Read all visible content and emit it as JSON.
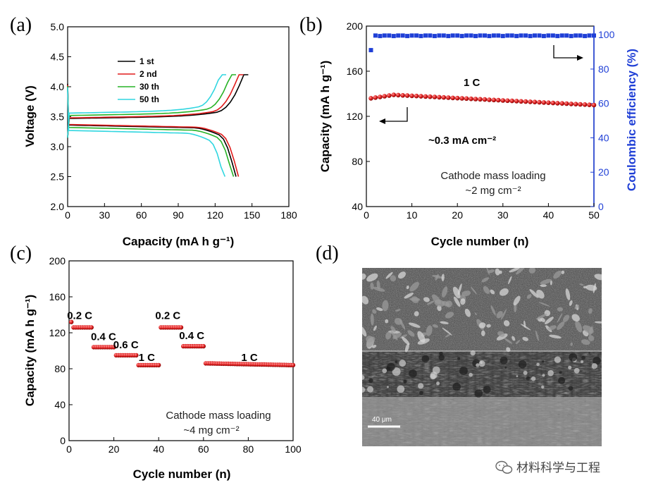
{
  "panels": {
    "a": {
      "letter": "(a)"
    },
    "b": {
      "letter": "(b)"
    },
    "c": {
      "letter": "(c)"
    },
    "d": {
      "letter": "(d)"
    }
  },
  "chart_data": [
    {
      "id": "a",
      "type": "line",
      "xlabel": "Capacity (mA h g⁻¹)",
      "ylabel": "Voltage (V)",
      "xlim": [
        0,
        180
      ],
      "ylim": [
        2.0,
        5.0
      ],
      "xticks": [
        "0",
        "30",
        "60",
        "90",
        "120",
        "150",
        "180"
      ],
      "yticks": [
        "2.0",
        "2.5",
        "3.0",
        "3.5",
        "4.0",
        "4.5",
        "5.0"
      ],
      "legend_position": "top-left",
      "series": [
        {
          "name": "1 st",
          "color": "#000000",
          "charge_end": [
            147,
            4.2
          ],
          "discharge_end": [
            137,
            2.5
          ],
          "charge_plateau": 3.47,
          "discharge_plateau": 3.36
        },
        {
          "name": "2 nd",
          "color": "#e01b1b",
          "charge_end": [
            143,
            4.2
          ],
          "discharge_end": [
            139,
            2.5
          ],
          "charge_plateau": 3.48,
          "discharge_plateau": 3.37
        },
        {
          "name": "30 th",
          "color": "#27b327",
          "charge_end": [
            137,
            4.2
          ],
          "discharge_end": [
            135,
            2.5
          ],
          "charge_plateau": 3.52,
          "discharge_plateau": 3.32
        },
        {
          "name": "50 th",
          "color": "#30d6e0",
          "charge_end": [
            129,
            4.2
          ],
          "discharge_end": [
            128,
            2.5
          ],
          "charge_plateau": 3.56,
          "discharge_plateau": 3.27
        }
      ]
    },
    {
      "id": "b",
      "type": "scatter",
      "xlabel": "Cycle number (n)",
      "ylabel": "Capacity (mA h g⁻¹)",
      "y2label": "Coulombic efficiency (%)",
      "xlim": [
        0,
        50
      ],
      "ylim": [
        40,
        200
      ],
      "y2lim": [
        0,
        105
      ],
      "xticks": [
        "0",
        "10",
        "20",
        "30",
        "40",
        "50"
      ],
      "yticks": [
        "40",
        "80",
        "120",
        "160",
        "200"
      ],
      "y2ticks": [
        "0",
        "20",
        "40",
        "60",
        "80",
        "100"
      ],
      "series": [
        {
          "name": "Capacity",
          "color": "#e02020",
          "axis": "left",
          "start": 136,
          "peak": 139,
          "end": 130
        },
        {
          "name": "Coulombic efficiency",
          "color": "#1f3fd6",
          "axis": "right",
          "first": 91,
          "steady": 99.5
        }
      ],
      "annotations": {
        "rate": "1 C",
        "current_density": "~0.3 mA cm⁻²",
        "loading_line1": "Cathode mass loading",
        "loading_line2": "~2 mg cm⁻²"
      }
    },
    {
      "id": "c",
      "type": "scatter",
      "xlabel": "Cycle number (n)",
      "ylabel": "Capacity (mA h g⁻¹)",
      "xlim": [
        0,
        100
      ],
      "ylim": [
        0,
        200
      ],
      "xticks": [
        "0",
        "20",
        "40",
        "60",
        "80",
        "100"
      ],
      "yticks": [
        "0",
        "40",
        "80",
        "120",
        "160",
        "200"
      ],
      "color": "#e02020",
      "segments": [
        {
          "label": "0.2 C",
          "from": 1,
          "to": 10,
          "value": 126
        },
        {
          "label": "0.4 C",
          "from": 11,
          "to": 20,
          "value": 104
        },
        {
          "label": "0.6 C",
          "from": 21,
          "to": 30,
          "value": 95
        },
        {
          "label": "1 C",
          "from": 31,
          "to": 40,
          "value": 84
        },
        {
          "label": "0.2 C",
          "from": 41,
          "to": 50,
          "value": 126
        },
        {
          "label": "0.4 C",
          "from": 51,
          "to": 60,
          "value": 105
        },
        {
          "label": "1 C",
          "from": 61,
          "to": 100,
          "value": 84
        }
      ],
      "first_point": 132,
      "annotations": {
        "loading_line1": "Cathode mass loading",
        "loading_line2": "~4 mg cm⁻²"
      }
    }
  ],
  "sem": {
    "scale_bar": "40 μm"
  },
  "watermark": {
    "text": "材料科学与工程"
  },
  "colors": {
    "red": "#e02020",
    "blue": "#1f3fd6",
    "blue_axis": "#1f3fd6"
  }
}
